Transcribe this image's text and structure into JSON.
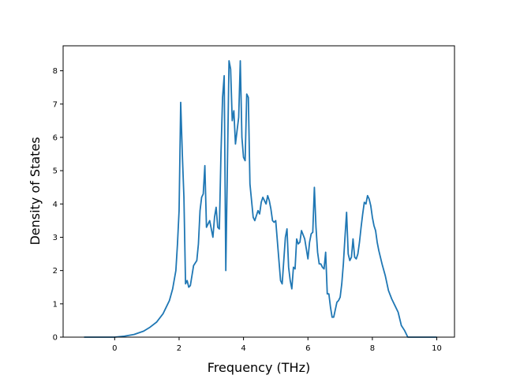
{
  "chart_data": {
    "type": "line",
    "title": "",
    "xlabel": "Frequency (THz)",
    "ylabel": "Density of States",
    "xlim": [
      -1.6,
      10.55
    ],
    "ylim": [
      0,
      8.75
    ],
    "x_ticks": [
      0,
      2,
      4,
      6,
      8,
      10
    ],
    "x_tick_labels": [
      "0",
      "2",
      "4",
      "6",
      "8",
      "10"
    ],
    "y_ticks": [
      0,
      1,
      2,
      3,
      4,
      5,
      6,
      7,
      8
    ],
    "y_tick_labels": [
      "0",
      "1",
      "2",
      "3",
      "4",
      "5",
      "6",
      "7",
      "8"
    ],
    "grid": false,
    "legend": "none",
    "series": [
      {
        "color": "#1f77b4",
        "x": [
          -0.95,
          0.0,
          0.3,
          0.6,
          0.9,
          1.1,
          1.3,
          1.5,
          1.6,
          1.7,
          1.8,
          1.9,
          1.95,
          2.0,
          2.05,
          2.1,
          2.15,
          2.2,
          2.25,
          2.3,
          2.35,
          2.45,
          2.55,
          2.6,
          2.65,
          2.7,
          2.75,
          2.8,
          2.85,
          2.95,
          3.05,
          3.1,
          3.15,
          3.2,
          3.25,
          3.3,
          3.35,
          3.4,
          3.45,
          3.55,
          3.6,
          3.65,
          3.7,
          3.75,
          3.8,
          3.85,
          3.9,
          3.95,
          4.0,
          4.05,
          4.1,
          4.15,
          4.2,
          4.25,
          4.3,
          4.35,
          4.45,
          4.5,
          4.55,
          4.6,
          4.7,
          4.75,
          4.8,
          4.85,
          4.9,
          4.95,
          5.0,
          5.1,
          5.15,
          5.2,
          5.3,
          5.35,
          5.4,
          5.45,
          5.5,
          5.55,
          5.6,
          5.65,
          5.7,
          5.75,
          5.8,
          5.9,
          6.0,
          6.05,
          6.1,
          6.15,
          6.2,
          6.25,
          6.3,
          6.35,
          6.4,
          6.45,
          6.5,
          6.55,
          6.6,
          6.65,
          6.7,
          6.75,
          6.8,
          6.9,
          6.95,
          7.0,
          7.05,
          7.1,
          7.15,
          7.2,
          7.25,
          7.3,
          7.35,
          7.4,
          7.45,
          7.5,
          7.55,
          7.6,
          7.65,
          7.7,
          7.75,
          7.8,
          7.85,
          7.9,
          7.95,
          8.0,
          8.05,
          8.1,
          8.15,
          8.2,
          8.3,
          8.4,
          8.5,
          8.6,
          8.7,
          8.8,
          8.9,
          9.0,
          9.1,
          9.15,
          9.2,
          10.0
        ],
        "y": [
          0.0,
          0.0,
          0.03,
          0.08,
          0.18,
          0.3,
          0.45,
          0.7,
          0.9,
          1.1,
          1.45,
          2.0,
          2.8,
          3.8,
          7.05,
          5.5,
          4.2,
          1.6,
          1.7,
          1.5,
          1.55,
          2.15,
          2.3,
          2.8,
          3.8,
          4.2,
          4.3,
          5.15,
          3.3,
          3.5,
          3.0,
          3.6,
          3.9,
          3.3,
          3.25,
          5.5,
          7.2,
          7.85,
          2.0,
          8.3,
          8.05,
          6.5,
          6.8,
          5.8,
          6.2,
          6.6,
          8.3,
          6.0,
          5.4,
          5.3,
          7.3,
          7.2,
          4.6,
          4.1,
          3.6,
          3.5,
          3.8,
          3.7,
          4.05,
          4.2,
          4.0,
          4.25,
          4.1,
          3.85,
          3.5,
          3.45,
          3.5,
          2.3,
          1.7,
          1.6,
          3.0,
          3.25,
          2.1,
          1.7,
          1.45,
          2.1,
          2.05,
          2.95,
          2.8,
          2.85,
          3.2,
          2.95,
          2.35,
          2.85,
          3.1,
          3.15,
          4.5,
          3.3,
          2.55,
          2.2,
          2.2,
          2.1,
          2.05,
          2.55,
          1.3,
          1.3,
          0.9,
          0.6,
          0.6,
          1.05,
          1.1,
          1.2,
          1.6,
          2.2,
          3.0,
          3.75,
          2.5,
          2.3,
          2.4,
          2.95,
          2.4,
          2.35,
          2.5,
          2.85,
          3.3,
          3.7,
          4.05,
          4.0,
          4.25,
          4.15,
          3.95,
          3.6,
          3.35,
          3.2,
          2.85,
          2.6,
          2.2,
          1.85,
          1.4,
          1.15,
          0.95,
          0.75,
          0.35,
          0.2,
          0.0,
          0.0,
          0.0,
          0.0
        ]
      }
    ]
  }
}
